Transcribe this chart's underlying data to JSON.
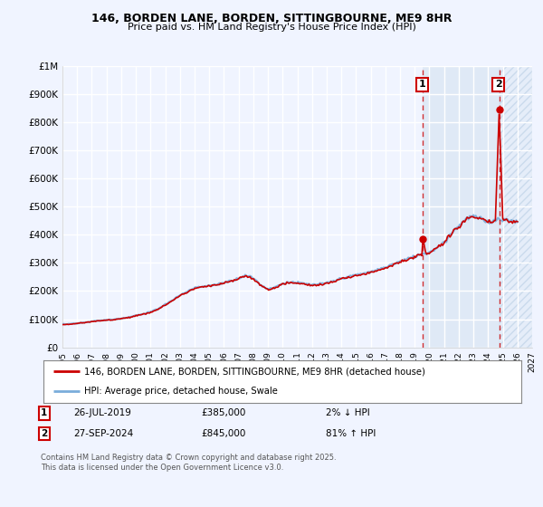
{
  "title_line1": "146, BORDEN LANE, BORDEN, SITTINGBOURNE, ME9 8HR",
  "title_line2": "Price paid vs. HM Land Registry's House Price Index (HPI)",
  "background_color": "#f0f4ff",
  "plot_bg_color": "#f0f4ff",
  "grid_color": "#ffffff",
  "xmin": 1995.0,
  "xmax": 2027.0,
  "ymin": 0,
  "ymax": 1000000,
  "yticks": [
    0,
    100000,
    200000,
    300000,
    400000,
    500000,
    600000,
    700000,
    800000,
    900000,
    1000000
  ],
  "ytick_labels": [
    "£0",
    "£100K",
    "£200K",
    "£300K",
    "£400K",
    "£500K",
    "£600K",
    "£700K",
    "£800K",
    "£900K",
    "£1M"
  ],
  "xticks": [
    1995,
    1996,
    1997,
    1998,
    1999,
    2000,
    2001,
    2002,
    2003,
    2004,
    2005,
    2006,
    2007,
    2008,
    2009,
    2010,
    2011,
    2012,
    2013,
    2014,
    2015,
    2016,
    2017,
    2018,
    2019,
    2020,
    2021,
    2022,
    2023,
    2024,
    2025,
    2026,
    2027
  ],
  "legend_line1": "146, BORDEN LANE, BORDEN, SITTINGBOURNE, ME9 8HR (detached house)",
  "legend_line2": "HPI: Average price, detached house, Swale",
  "sale1_label": "1",
  "sale1_date": "26-JUL-2019",
  "sale1_price": "£385,000",
  "sale1_hpi": "2% ↓ HPI",
  "sale1_x": 2019.57,
  "sale1_y": 385000,
  "sale2_label": "2",
  "sale2_date": "27-SEP-2024",
  "sale2_price": "£845,000",
  "sale2_hpi": "81% ↑ HPI",
  "sale2_x": 2024.75,
  "sale2_y": 845000,
  "vline1_x": 2019.57,
  "vline2_x": 2024.75,
  "shade_start": 2019.57,
  "shade_end": 2024.75,
  "hatch_start": 2024.75,
  "hatch_end": 2027.0,
  "red_color": "#cc0000",
  "blue_color": "#7aaddb",
  "footnote": "Contains HM Land Registry data © Crown copyright and database right 2025.\nThis data is licensed under the Open Government Licence v3.0."
}
